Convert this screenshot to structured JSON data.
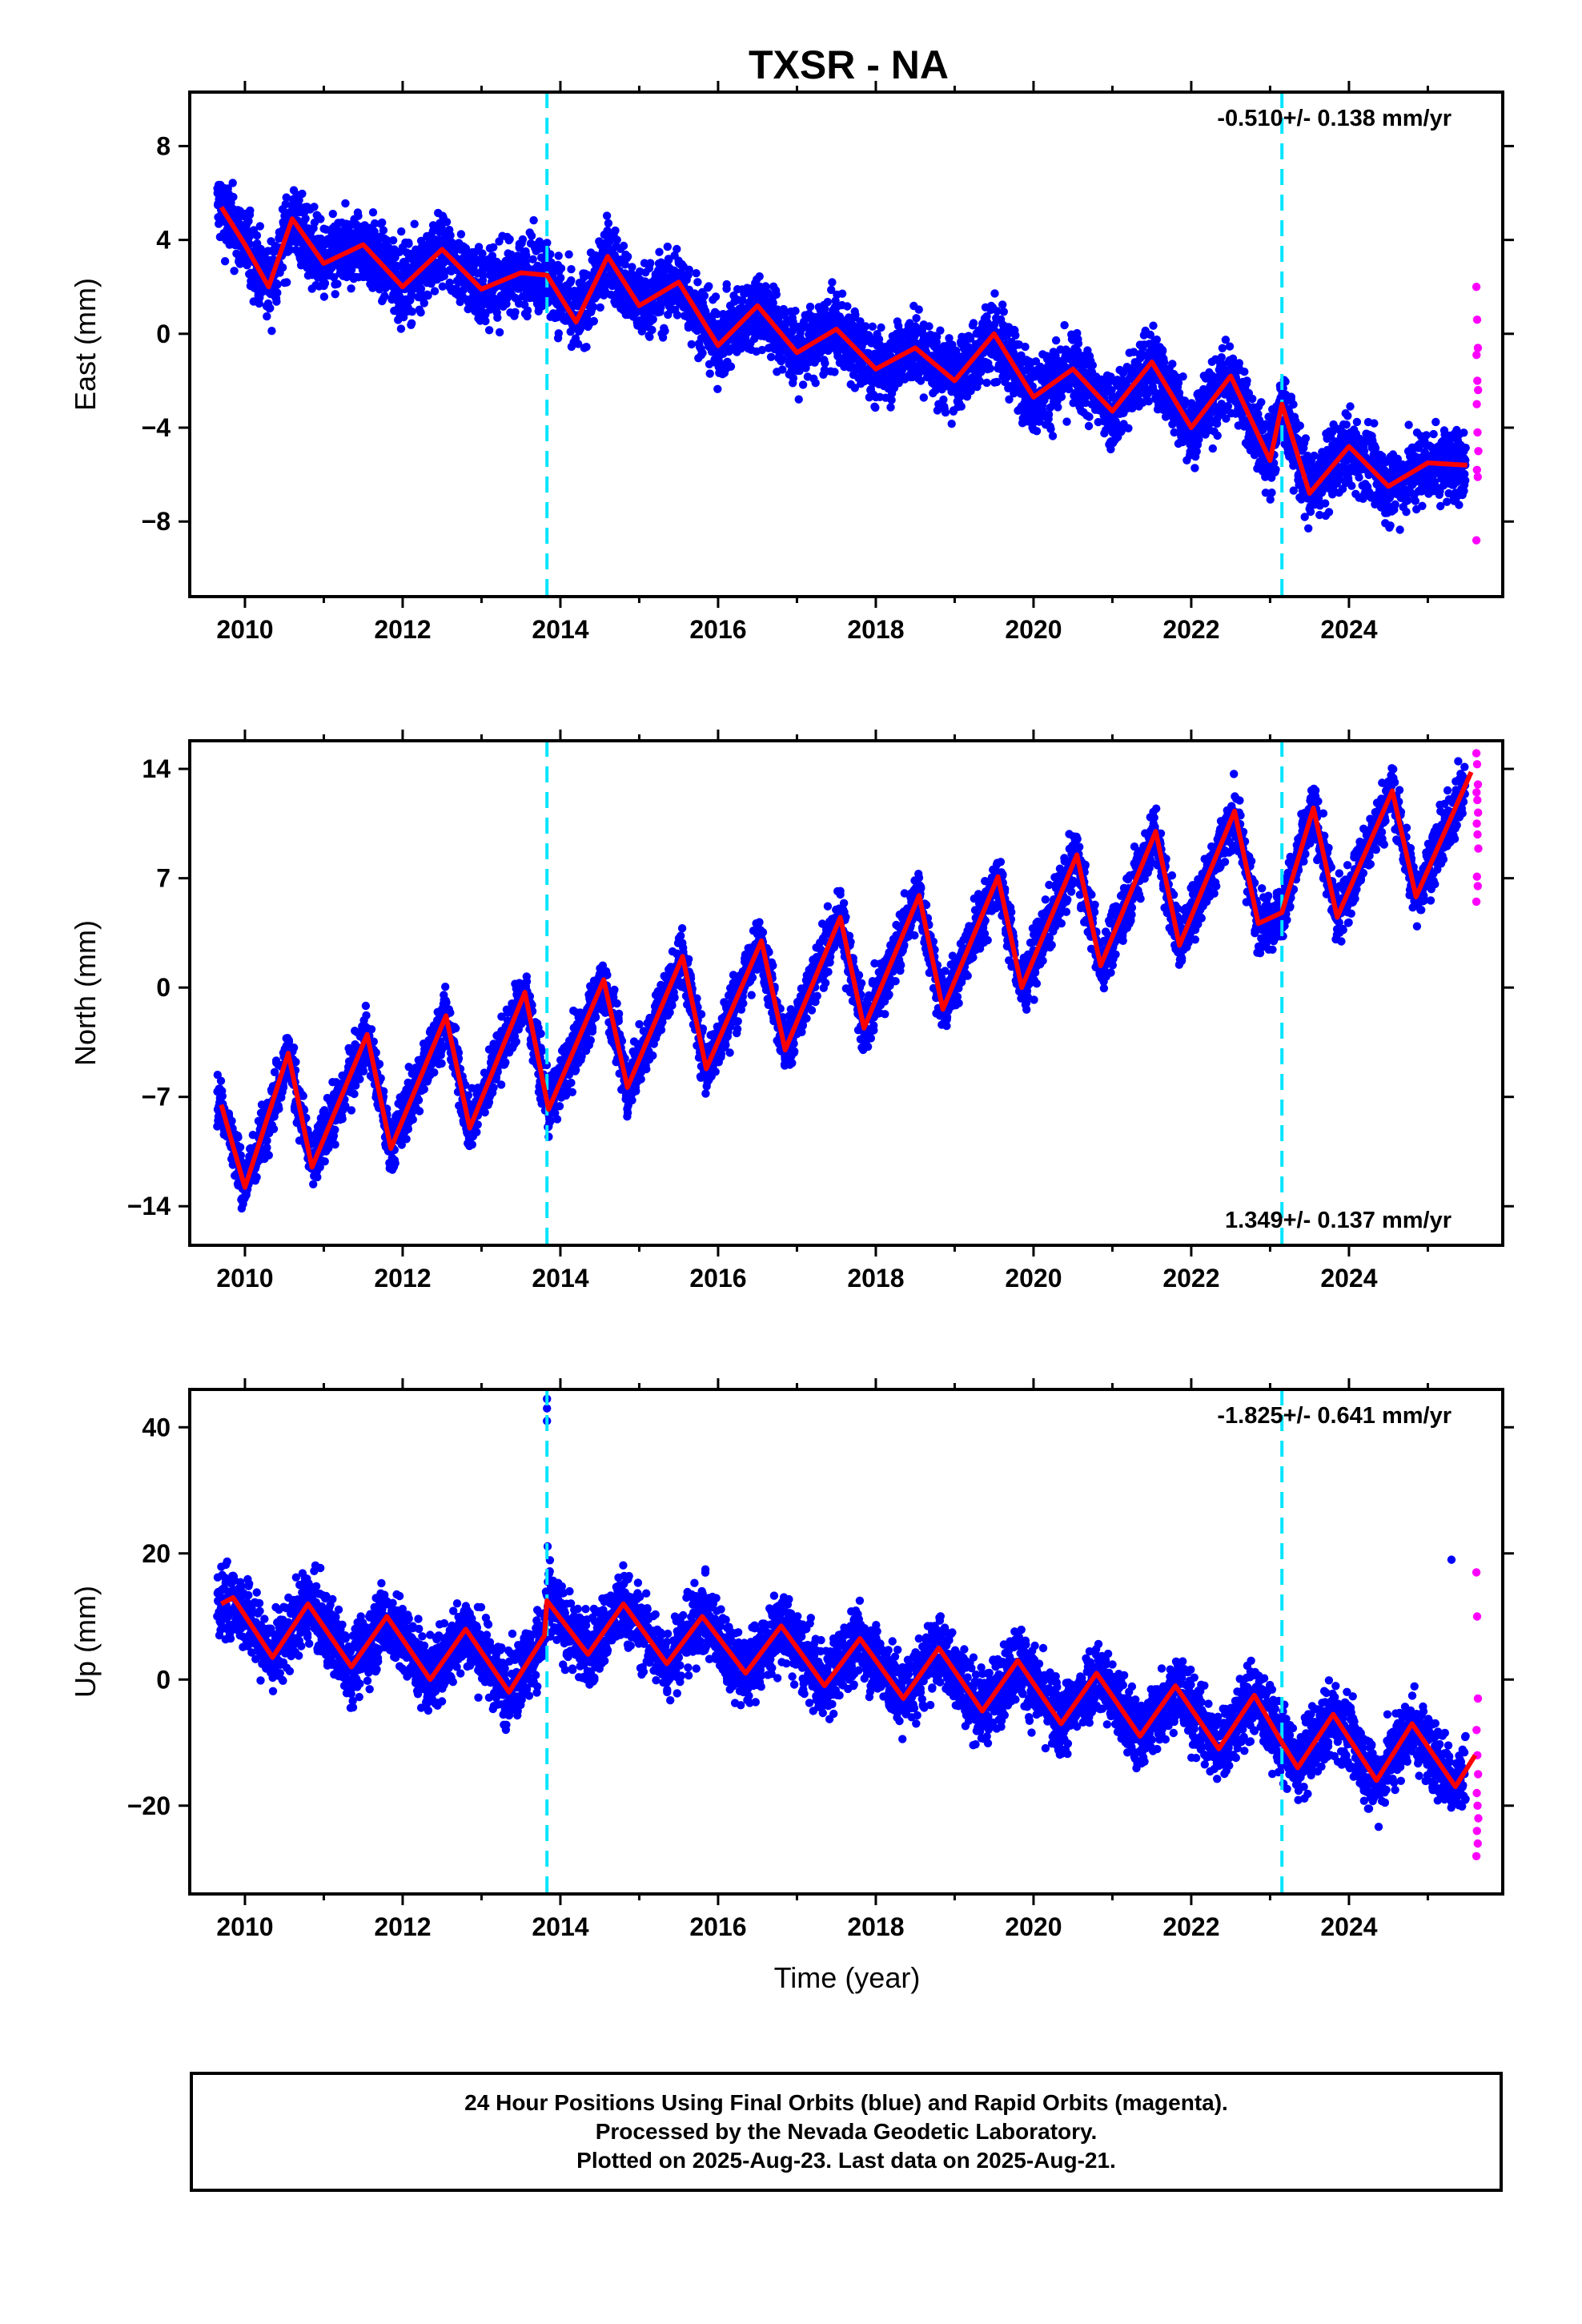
{
  "title": "TXSR - NA",
  "xlabel": "Time (year)",
  "footer": {
    "line1": "24 Hour Positions Using Final Orbits (blue) and Rapid Orbits (magenta).",
    "line2": "Processed by the Nevada Geodetic Laboratory.",
    "line3": "Plotted on 2025-Aug-23. Last data on 2025-Aug-21."
  },
  "colors": {
    "final_orbits": "#0000ff",
    "rapid_orbits": "#ff00ff",
    "model_fit": "#ff0000",
    "event_lines": "#00e5ff"
  },
  "chart_data": [
    {
      "type": "scatter",
      "component": "east",
      "ylabel": "East (mm)",
      "rate_text": "-0.510+/- 0.138 mm/yr",
      "rate_position": "top-right",
      "xlim": [
        2009.3,
        2025.95
      ],
      "ylim": [
        -11.2,
        10.3
      ],
      "x_ticks": [
        2010,
        2012,
        2014,
        2016,
        2018,
        2020,
        2022,
        2024
      ],
      "y_ticks": [
        -8,
        -4,
        0,
        4,
        8
      ],
      "y_tick_labels": [
        "−8",
        "−4",
        "0",
        "4",
        "8"
      ],
      "event_lines_x": [
        2013.83,
        2023.15
      ],
      "data_start": 2009.65,
      "final_end": 2025.48,
      "rapid_range": [
        2025.48,
        2025.64
      ],
      "trend": {
        "value_at_2010": 3.2,
        "rate_mm_per_yr": -0.51
      },
      "model_fit": {
        "x": [
          2009.7,
          2010.0,
          2010.3,
          2010.6,
          2011.0,
          2011.5,
          2012.0,
          2012.5,
          2013.0,
          2013.5,
          2013.83,
          2014.2,
          2014.6,
          2015.0,
          2015.5,
          2016.0,
          2016.5,
          2017.0,
          2017.5,
          2018.0,
          2018.5,
          2019.0,
          2019.5,
          2020.0,
          2020.5,
          2021.0,
          2021.5,
          2022.0,
          2022.5,
          2023.0,
          2023.15,
          2023.5,
          2024.0,
          2024.5,
          2025.0,
          2025.5
        ],
        "y": [
          5.4,
          3.8,
          2.0,
          4.9,
          3.0,
          3.8,
          2.0,
          3.6,
          1.9,
          2.6,
          2.5,
          0.5,
          3.3,
          1.2,
          2.2,
          -0.5,
          1.2,
          -0.8,
          0.2,
          -1.5,
          -0.6,
          -2.0,
          0.0,
          -2.7,
          -1.5,
          -3.3,
          -1.2,
          -4.0,
          -1.8,
          -5.4,
          -3.0,
          -6.8,
          -4.8,
          -6.5,
          -5.5,
          -5.6
        ]
      },
      "scatter_amplitude_mm": 1.5,
      "seasonal_amplitude_mm": 1.2,
      "rapid_values": [
        2.0,
        0.6,
        -0.6,
        -0.9,
        -2.0,
        -2.4,
        -3.0,
        -4.2,
        -5.0,
        -5.8,
        -6.1,
        -8.8
      ]
    },
    {
      "type": "scatter",
      "component": "north",
      "ylabel": "North (mm)",
      "rate_text": "1.349+/- 0.137 mm/yr",
      "rate_position": "bottom-right",
      "xlim": [
        2009.3,
        2025.95
      ],
      "ylim": [
        -16.5,
        15.8
      ],
      "x_ticks": [
        2010,
        2012,
        2014,
        2016,
        2018,
        2020,
        2022,
        2024
      ],
      "y_ticks": [
        -14,
        -7,
        0,
        7,
        14
      ],
      "y_tick_labels": [
        "−14",
        "−7",
        "0",
        "7",
        "14"
      ],
      "event_lines_x": [
        2013.83,
        2023.15
      ],
      "data_start": 2009.65,
      "final_end": 2025.48,
      "rapid_range": [
        2025.48,
        2025.64
      ],
      "trend": {
        "value_at_2010": -8.0,
        "rate_mm_per_yr": 1.349
      },
      "model_fit": {
        "x": [
          2009.7,
          2010.0,
          2010.55,
          2010.85,
          2011.55,
          2011.85,
          2012.55,
          2012.85,
          2013.55,
          2013.85,
          2014.55,
          2014.85,
          2015.55,
          2015.85,
          2016.55,
          2016.85,
          2017.55,
          2017.85,
          2018.55,
          2018.85,
          2019.55,
          2019.85,
          2020.55,
          2020.85,
          2021.55,
          2021.85,
          2022.55,
          2022.85,
          2023.15,
          2023.55,
          2023.85,
          2024.55,
          2024.85,
          2025.55
        ],
        "y": [
          -7.5,
          -12.8,
          -4.2,
          -11.5,
          -3.0,
          -10.3,
          -1.8,
          -9.0,
          -0.3,
          -7.8,
          0.5,
          -6.4,
          2.0,
          -5.2,
          3.0,
          -4.0,
          4.5,
          -2.6,
          5.9,
          -1.4,
          7.1,
          0.0,
          8.5,
          1.4,
          10.0,
          2.7,
          11.3,
          4.1,
          4.8,
          11.5,
          4.5,
          12.6,
          5.8,
          13.8
        ]
      },
      "scatter_amplitude_mm": 1.7,
      "seasonal_amplitude_mm": 4.3,
      "rapid_values": [
        15.0,
        14.3,
        13.0,
        12.5,
        12.0,
        11.2,
        10.5,
        9.8,
        8.9,
        7.1,
        6.5,
        5.5
      ]
    },
    {
      "type": "scatter",
      "component": "up",
      "ylabel": "Up (mm)",
      "rate_text": "-1.825+/- 0.641 mm/yr",
      "rate_position": "top-right",
      "xlim": [
        2009.3,
        2025.95
      ],
      "ylim": [
        -34,
        46
      ],
      "x_ticks": [
        2010,
        2012,
        2014,
        2016,
        2018,
        2020,
        2022,
        2024
      ],
      "y_ticks": [
        -20,
        0,
        20,
        40
      ],
      "y_tick_labels": [
        "−20",
        "0",
        "20",
        "40"
      ],
      "event_lines_x": [
        2013.83,
        2023.15
      ],
      "data_start": 2009.65,
      "final_end": 2025.48,
      "rapid_range": [
        2025.48,
        2025.64
      ],
      "trend": {
        "value_at_2010": 8.0,
        "rate_mm_per_yr": -1.825
      },
      "model_fit": {
        "x": [
          2009.7,
          2009.85,
          2010.35,
          2010.8,
          2011.35,
          2011.8,
          2012.35,
          2012.8,
          2013.35,
          2013.8,
          2013.83,
          2014.35,
          2014.8,
          2015.35,
          2015.8,
          2016.35,
          2016.8,
          2017.35,
          2017.8,
          2018.35,
          2018.8,
          2019.35,
          2019.8,
          2020.35,
          2020.8,
          2021.35,
          2021.8,
          2022.35,
          2022.8,
          2023.15,
          2023.35,
          2023.8,
          2024.35,
          2024.8,
          2025.35,
          2025.6
        ],
        "y": [
          12.0,
          13.0,
          3.5,
          12.0,
          2.0,
          10.0,
          0.0,
          8.0,
          -2.0,
          7.0,
          12.5,
          4.0,
          12.0,
          2.5,
          10.0,
          1.0,
          8.5,
          -1.0,
          6.5,
          -3.0,
          5.0,
          -5.0,
          3.0,
          -7.0,
          1.0,
          -9.0,
          -1.0,
          -11.0,
          -2.5,
          -10.0,
          -14.0,
          -5.5,
          -16.0,
          -7.0,
          -17.0,
          -12.0
        ]
      },
      "scatter_amplitude_mm": 5.5,
      "seasonal_amplitude_mm": 6.0,
      "outliers": [
        {
          "x": 2013.83,
          "y": 44.5
        },
        {
          "x": 2013.83,
          "y": 43.0
        },
        {
          "x": 2013.83,
          "y": 41.0
        },
        {
          "x": 2025.3,
          "y": 19.0
        }
      ],
      "rapid_values": [
        17.0,
        10.0,
        -3.0,
        -8.0,
        -12.0,
        -15.0,
        -18.0,
        -20.0,
        -22.0,
        -24.0,
        -26.0,
        -28.0
      ]
    }
  ]
}
